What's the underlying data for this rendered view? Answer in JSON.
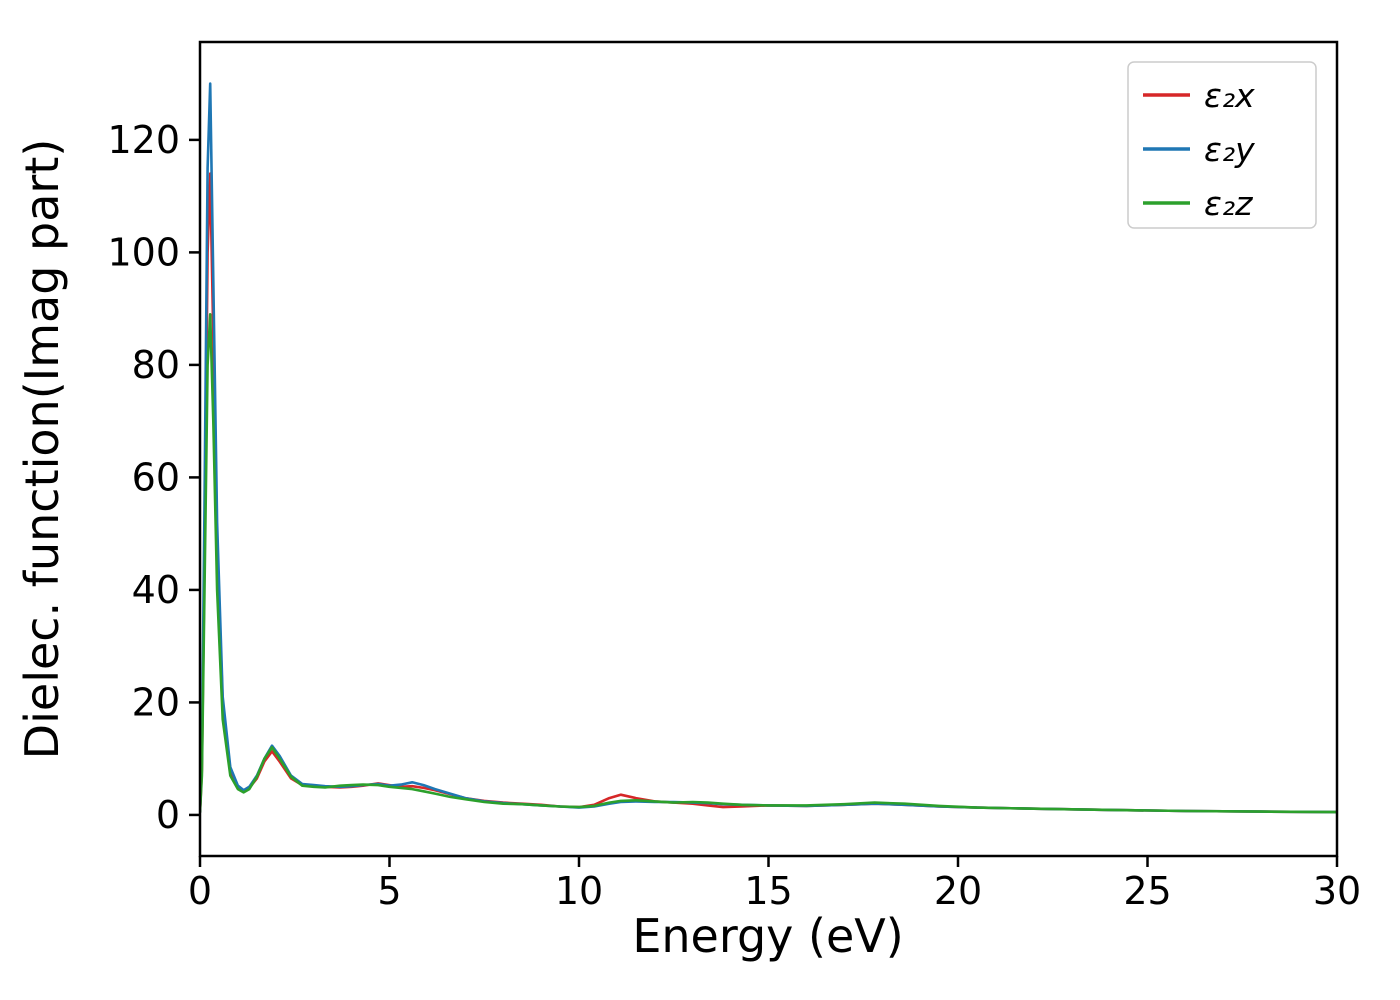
{
  "figure": {
    "background": "#ffffff",
    "axis_color": "#000000"
  },
  "chart_data": {
    "type": "line",
    "title": "",
    "xlabel": "Energy (eV)",
    "ylabel": "Dielec. function(Imag part)",
    "xlim": [
      0,
      30
    ],
    "ylim": [
      -7.3,
      137.4
    ],
    "xticks": [
      0,
      5,
      10,
      15,
      20,
      25,
      30
    ],
    "yticks": [
      0,
      20,
      40,
      60,
      80,
      100,
      120
    ],
    "grid": false,
    "legend_position": "upper right",
    "legend_border_color": "#cccccc",
    "x": [
      0,
      0.05,
      0.12,
      0.2,
      0.27,
      0.35,
      0.45,
      0.6,
      0.8,
      1.0,
      1.15,
      1.3,
      1.5,
      1.7,
      1.9,
      2.1,
      2.4,
      2.7,
      3.0,
      3.3,
      3.7,
      4.0,
      4.3,
      4.7,
      5.0,
      5.3,
      5.6,
      5.9,
      6.2,
      6.6,
      7.0,
      7.5,
      8.0,
      8.5,
      9.0,
      9.5,
      10.0,
      10.4,
      10.8,
      11.1,
      11.5,
      12.0,
      12.5,
      13.0,
      13.4,
      13.8,
      14.3,
      15.0,
      16.0,
      17.0,
      17.8,
      18.6,
      19.5,
      20.5,
      22,
      24,
      26,
      28,
      30
    ],
    "series": [
      {
        "name": "ε₂x",
        "color": "#d62728",
        "values": [
          0.5,
          8,
          45,
          100,
          114,
          85,
          48,
          20,
          8,
          5.0,
          4.3,
          4.8,
          6.5,
          9.5,
          11.3,
          9.5,
          6.5,
          5.3,
          5.2,
          5.0,
          4.9,
          5.0,
          5.2,
          5.6,
          5.3,
          5.0,
          5.1,
          4.8,
          4.4,
          3.7,
          3.0,
          2.5,
          2.2,
          2.0,
          1.8,
          1.5,
          1.4,
          1.8,
          3.0,
          3.6,
          3.0,
          2.4,
          2.2,
          2.0,
          1.7,
          1.4,
          1.5,
          1.7,
          1.6,
          1.8,
          2.0,
          1.8,
          1.5,
          1.3,
          1.1,
          0.9,
          0.7,
          0.6,
          0.5
        ]
      },
      {
        "name": "ε₂y",
        "color": "#1f77b4",
        "values": [
          0.5,
          10,
          55,
          115,
          130,
          95,
          52,
          21,
          8.5,
          5.2,
          4.4,
          5.0,
          7.0,
          10.0,
          12.3,
          10.5,
          7.0,
          5.5,
          5.3,
          5.1,
          5.0,
          5.1,
          5.3,
          5.5,
          5.2,
          5.4,
          5.8,
          5.3,
          4.6,
          3.8,
          3.0,
          2.4,
          2.1,
          1.9,
          1.7,
          1.5,
          1.3,
          1.5,
          2.0,
          2.3,
          2.4,
          2.3,
          2.3,
          2.2,
          2.1,
          1.9,
          1.8,
          1.7,
          1.6,
          1.8,
          2.0,
          1.8,
          1.5,
          1.3,
          1.1,
          0.9,
          0.7,
          0.6,
          0.5
        ]
      },
      {
        "name": "ε₂z",
        "color": "#2ca02c",
        "values": [
          0.5,
          7,
          40,
          80,
          89,
          70,
          40,
          17,
          7,
          4.6,
          4.0,
          4.6,
          6.8,
          10.0,
          12.0,
          10.0,
          6.8,
          5.2,
          5.0,
          4.9,
          5.2,
          5.3,
          5.4,
          5.3,
          5.0,
          4.8,
          4.6,
          4.2,
          3.8,
          3.2,
          2.8,
          2.3,
          2.0,
          1.9,
          1.7,
          1.5,
          1.4,
          1.6,
          2.2,
          2.5,
          2.6,
          2.4,
          2.2,
          2.3,
          2.2,
          2.0,
          1.8,
          1.7,
          1.7,
          1.9,
          2.2,
          2.0,
          1.6,
          1.3,
          1.1,
          0.9,
          0.7,
          0.6,
          0.5
        ]
      }
    ]
  }
}
